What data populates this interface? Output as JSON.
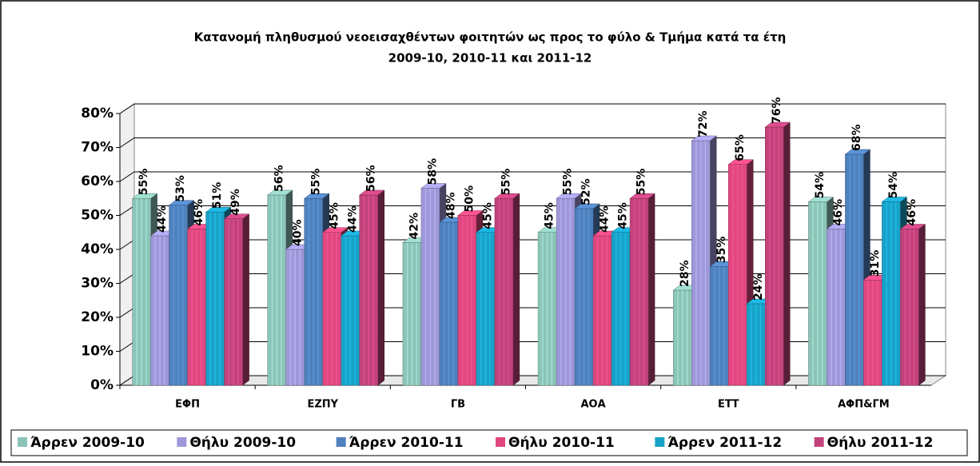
{
  "chart_data": {
    "type": "bar3d",
    "title": [
      "Κατανομή πληθυσμού νεοεισαχθέντων φοιτητών ως προς το φύλο & Τμήμα κατά τα έτη",
      "2009-10, 2010-11 και 2011-12"
    ],
    "categories": [
      "ΕΦΠ",
      "ΕΖΠΥ",
      "ΓΒ",
      "ΑΟΑ",
      "ΕΤΤ",
      "ΑΦΠ&ΓΜ"
    ],
    "series": [
      {
        "name": "Άρρεν 2009-10",
        "color": "#8cc4b8",
        "values": [
          55,
          56,
          42,
          45,
          28,
          54
        ],
        "value_labels": [
          "55%",
          "56%",
          "42%",
          "45%",
          "28%",
          "54%"
        ]
      },
      {
        "name": "Θήλυ 2009-10",
        "color": "#9e98d8",
        "values": [
          44,
          40,
          58,
          55,
          72,
          46
        ],
        "value_labels": [
          "44%",
          "40%",
          "58%",
          "55%",
          "72%",
          "46%"
        ]
      },
      {
        "name": "Άρρεν 2010-11",
        "color": "#4f81bd",
        "values": [
          53,
          55,
          48,
          52,
          35,
          68
        ],
        "value_labels": [
          "53%",
          "55%",
          "48%",
          "52%",
          "35%",
          "68%"
        ]
      },
      {
        "name": "Θήλυ 2010-11",
        "color": "#e0487f",
        "values": [
          46,
          45,
          50,
          44,
          65,
          31
        ],
        "value_labels": [
          "46%",
          "45%",
          "50%",
          "44%",
          "65%",
          "31%"
        ]
      },
      {
        "name": "Άρρεν 2011-12",
        "color": "#19a2c8",
        "values": [
          51,
          44,
          45,
          45,
          24,
          54
        ],
        "value_labels": [
          "51%",
          "44%",
          "45%",
          "45%",
          "24%",
          "54%"
        ]
      },
      {
        "name": "Θήλυ 2011-12",
        "color": "#c2437c",
        "values": [
          49,
          56,
          55,
          55,
          76,
          46
        ],
        "value_labels": [
          "49%",
          "56%",
          "55%",
          "55%",
          "76%",
          "46%"
        ]
      }
    ],
    "ylim": [
      0,
      80
    ],
    "yticks": [
      {
        "value": 0,
        "label": "0%"
      },
      {
        "value": 10,
        "label": "10%"
      },
      {
        "value": 20,
        "label": "20%"
      },
      {
        "value": 30,
        "label": "30%"
      },
      {
        "value": 40,
        "label": "40%"
      },
      {
        "value": 50,
        "label": "50%"
      },
      {
        "value": 60,
        "label": "60%"
      },
      {
        "value": 70,
        "label": "70%"
      },
      {
        "value": 80,
        "label": "80%"
      }
    ],
    "grid": true,
    "legend": "bottom"
  }
}
